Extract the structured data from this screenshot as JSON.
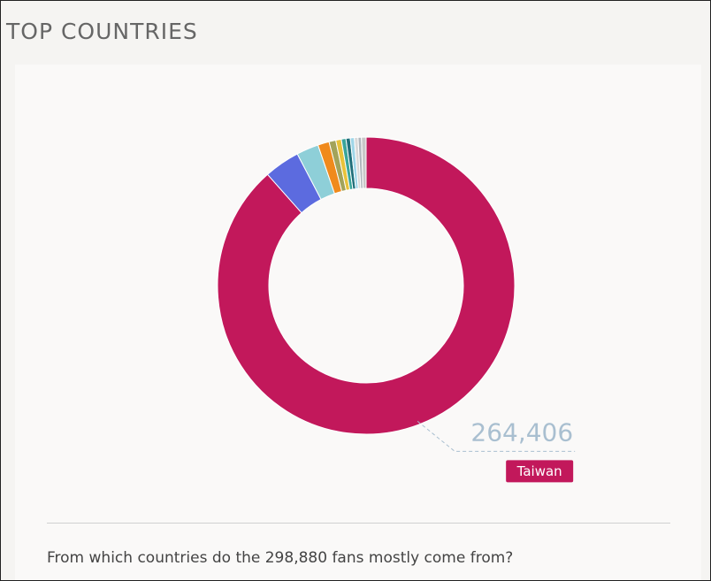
{
  "header": {
    "title": "TOP COUNTRIES"
  },
  "chart_data": {
    "type": "donut",
    "categories": [
      "Taiwan",
      null,
      null,
      null,
      null,
      null,
      null,
      null,
      null,
      null,
      null,
      null
    ],
    "values": [
      264406,
      11600,
      7200,
      3700,
      2200,
      1800,
      1500,
      1400,
      1300,
      1200,
      1100,
      1500
    ],
    "value_labels": [
      "264,406",
      null,
      null,
      null,
      null,
      null,
      null,
      null,
      null,
      null,
      null,
      null
    ],
    "colors": [
      "#c2185b",
      "#5c6bdf",
      "#8ecfd8",
      "#f08a1c",
      "#a3a35a",
      "#e8c23a",
      "#3aa59a",
      "#1f6f7a",
      "#9fd6e8",
      "#d9d9d9",
      "#b0b7bd",
      "#c8c8c8"
    ]
  },
  "question": "From which countries do the 298,880 fans mostly come from?"
}
